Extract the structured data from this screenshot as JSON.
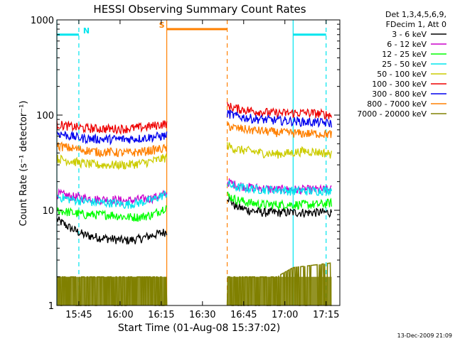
{
  "chart_data": {
    "type": "line",
    "title": "HESSI Observing Summary Count Rates",
    "xlabel": "Start Time (01-Aug-08 15:37:02)",
    "ylabel": "Count Rate (s⁻¹ detector⁻¹)",
    "x_unit": "minutes after 15:37:02",
    "xlim": [
      0,
      103
    ],
    "ylim": [
      1,
      1000
    ],
    "y_scale": "log",
    "grid": false,
    "legend_position": "top-right, outside plot",
    "x_ticks": [
      {
        "label": "15:45",
        "x": 8
      },
      {
        "label": "16:00",
        "x": 23
      },
      {
        "label": "16:15",
        "x": 38
      },
      {
        "label": "16:30",
        "x": 53
      },
      {
        "label": "16:45",
        "x": 68
      },
      {
        "label": "17:00",
        "x": 83
      },
      {
        "label": "17:15",
        "x": 98
      }
    ],
    "y_ticks": [
      {
        "label": "1",
        "y": 1
      },
      {
        "label": "10",
        "y": 10
      },
      {
        "label": "100",
        "y": 100
      },
      {
        "label": "1000",
        "y": 1000
      }
    ],
    "legend_header": [
      "Det 1,3,4,5,6,9,",
      "FDecim 1, Att 0"
    ],
    "footer_timestamp": "13-Dec-2009 21:09",
    "segments": [
      [
        0,
        40
      ],
      [
        62,
        100
      ]
    ],
    "series": [
      {
        "name": "3 - 6 keV",
        "color": "#000000",
        "points": [
          [
            0,
            8
          ],
          [
            5,
            6.5
          ],
          [
            10,
            5.5
          ],
          [
            15,
            5.2
          ],
          [
            20,
            5
          ],
          [
            25,
            4.8
          ],
          [
            30,
            5
          ],
          [
            35,
            5.5
          ],
          [
            40,
            6
          ],
          [
            62,
            14
          ],
          [
            65,
            11
          ],
          [
            70,
            10
          ],
          [
            75,
            9.5
          ],
          [
            80,
            9.5
          ],
          [
            85,
            9.5
          ],
          [
            90,
            9.5
          ],
          [
            95,
            9.5
          ],
          [
            100,
            9.5
          ]
        ]
      },
      {
        "name": "6 - 12 keV",
        "color": "#cc00cc",
        "points": [
          [
            0,
            15
          ],
          [
            5,
            14
          ],
          [
            10,
            13.5
          ],
          [
            15,
            13
          ],
          [
            20,
            13
          ],
          [
            25,
            12.5
          ],
          [
            30,
            13
          ],
          [
            35,
            13.5
          ],
          [
            40,
            15
          ],
          [
            62,
            20
          ],
          [
            65,
            18.5
          ],
          [
            70,
            17.5
          ],
          [
            75,
            17
          ],
          [
            80,
            16.5
          ],
          [
            85,
            16.5
          ],
          [
            90,
            16.5
          ],
          [
            95,
            16.5
          ],
          [
            100,
            16.5
          ]
        ]
      },
      {
        "name": "12 - 25 keV",
        "color": "#00ff00",
        "points": [
          [
            0,
            10
          ],
          [
            5,
            9.5
          ],
          [
            10,
            9
          ],
          [
            15,
            9
          ],
          [
            20,
            9
          ],
          [
            25,
            8.5
          ],
          [
            30,
            8.5
          ],
          [
            35,
            9
          ],
          [
            40,
            11
          ],
          [
            62,
            14.5
          ],
          [
            65,
            13
          ],
          [
            70,
            12
          ],
          [
            75,
            11.5
          ],
          [
            80,
            11.5
          ],
          [
            85,
            11.5
          ],
          [
            90,
            11.5
          ],
          [
            95,
            11.5
          ],
          [
            100,
            12
          ]
        ]
      },
      {
        "name": "25 - 50 keV",
        "color": "#00e5ee",
        "points": [
          [
            0,
            14
          ],
          [
            5,
            13
          ],
          [
            10,
            12.5
          ],
          [
            15,
            12
          ],
          [
            20,
            12
          ],
          [
            25,
            11.5
          ],
          [
            30,
            12
          ],
          [
            35,
            13
          ],
          [
            40,
            15
          ],
          [
            62,
            19
          ],
          [
            65,
            17.5
          ],
          [
            70,
            17
          ],
          [
            75,
            16.5
          ],
          [
            80,
            16.5
          ],
          [
            85,
            16
          ],
          [
            90,
            16
          ],
          [
            95,
            16
          ],
          [
            100,
            16.5
          ]
        ]
      },
      {
        "name": "50 - 100 keV",
        "color": "#cccc00",
        "points": [
          [
            0,
            35
          ],
          [
            5,
            33
          ],
          [
            10,
            31
          ],
          [
            15,
            30
          ],
          [
            20,
            30
          ],
          [
            25,
            30
          ],
          [
            30,
            31
          ],
          [
            35,
            33
          ],
          [
            40,
            36
          ],
          [
            62,
            48
          ],
          [
            65,
            44
          ],
          [
            70,
            42
          ],
          [
            75,
            40
          ],
          [
            80,
            39
          ],
          [
            85,
            40
          ],
          [
            90,
            42
          ],
          [
            95,
            41
          ],
          [
            100,
            39
          ]
        ]
      },
      {
        "name": "100 - 300 keV",
        "color": "#ee0000",
        "points": [
          [
            0,
            80
          ],
          [
            5,
            76
          ],
          [
            10,
            73
          ],
          [
            15,
            72
          ],
          [
            20,
            72
          ],
          [
            25,
            72
          ],
          [
            30,
            74
          ],
          [
            35,
            77
          ],
          [
            40,
            82
          ],
          [
            62,
            125
          ],
          [
            65,
            118
          ],
          [
            70,
            112
          ],
          [
            75,
            108
          ],
          [
            80,
            105
          ],
          [
            85,
            105
          ],
          [
            90,
            106
          ],
          [
            95,
            104
          ],
          [
            100,
            100
          ]
        ]
      },
      {
        "name": "300 - 800 keV",
        "color": "#0000ee",
        "points": [
          [
            0,
            65
          ],
          [
            5,
            60
          ],
          [
            10,
            57
          ],
          [
            15,
            56
          ],
          [
            20,
            56
          ],
          [
            25,
            56
          ],
          [
            30,
            57
          ],
          [
            35,
            59
          ],
          [
            40,
            61
          ],
          [
            62,
            105
          ],
          [
            65,
            98
          ],
          [
            70,
            93
          ],
          [
            75,
            90
          ],
          [
            80,
            88
          ],
          [
            85,
            87
          ],
          [
            90,
            85
          ],
          [
            95,
            84
          ],
          [
            100,
            82
          ]
        ]
      },
      {
        "name": "800 - 7000 keV",
        "color": "#ff8000",
        "points": [
          [
            0,
            48
          ],
          [
            5,
            45
          ],
          [
            10,
            43
          ],
          [
            15,
            41
          ],
          [
            20,
            41
          ],
          [
            25,
            40
          ],
          [
            30,
            41
          ],
          [
            35,
            43
          ],
          [
            40,
            45
          ],
          [
            62,
            78
          ],
          [
            65,
            73
          ],
          [
            70,
            70
          ],
          [
            75,
            68
          ],
          [
            80,
            66
          ],
          [
            85,
            65
          ],
          [
            90,
            64
          ],
          [
            95,
            64
          ],
          [
            100,
            63
          ]
        ]
      },
      {
        "name": "7000 - 20000 keV",
        "color": "#808000",
        "points": [
          [
            0,
            2
          ],
          [
            10,
            2
          ],
          [
            20,
            2
          ],
          [
            30,
            2
          ],
          [
            40,
            2
          ],
          [
            62,
            2
          ],
          [
            70,
            2
          ],
          [
            80,
            2
          ],
          [
            86,
            2.5
          ],
          [
            100,
            2.8
          ]
        ]
      }
    ],
    "annotations": [
      {
        "label": "N",
        "color": "#00e5ee",
        "x": 8,
        "level_y": 700,
        "start_x": 0,
        "end_x": 8,
        "solid_start": true
      },
      {
        "label": "S",
        "color": "#ff8000",
        "x": 40,
        "level_y": 800,
        "start_x": 40,
        "end_x": 62,
        "solid_start": true
      },
      {
        "label": "",
        "color": "#00e5ee",
        "x": 98,
        "level_y": 700,
        "start_x": 86,
        "end_x": 98,
        "solid_start": true
      }
    ]
  }
}
